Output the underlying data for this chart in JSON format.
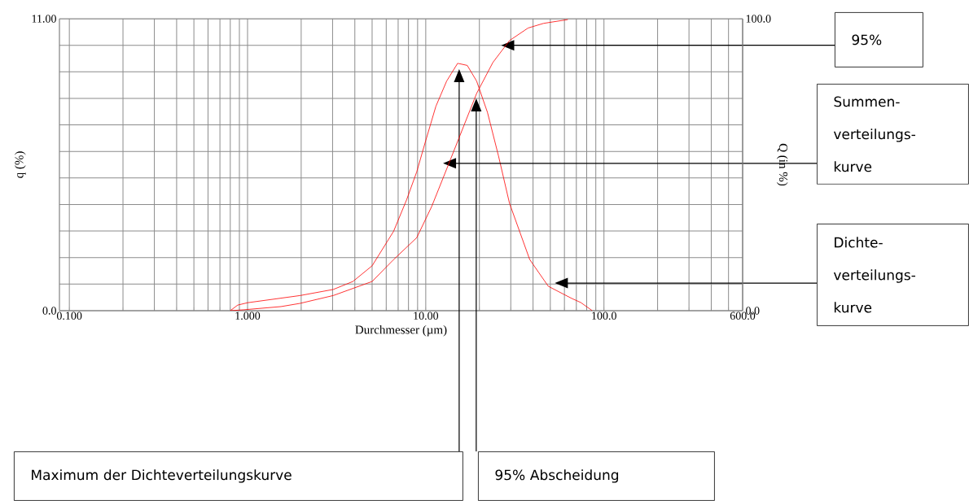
{
  "chart_data": {
    "type": "line",
    "xlabel": "Durchmesser (µm)",
    "ylabel": "q (%)",
    "y2label": "Q (in %)",
    "log": "x",
    "grid": true,
    "marker": "none",
    "line_style": "solid",
    "xlim": [
      0.088,
      600
    ],
    "ylim": [
      0,
      11
    ],
    "y2lim": [
      0,
      100
    ],
    "xticks": [
      {
        "value": 0.1,
        "label": "0.100"
      },
      {
        "value": 0.2,
        "label": null
      },
      {
        "value": 0.3,
        "label": null
      },
      {
        "value": 0.4,
        "label": null
      },
      {
        "value": 0.5,
        "label": null
      },
      {
        "value": 0.6,
        "label": null
      },
      {
        "value": 0.7,
        "label": null
      },
      {
        "value": 0.8,
        "label": null
      },
      {
        "value": 0.9,
        "label": null
      },
      {
        "value": 1,
        "label": "1.000"
      },
      {
        "value": 2,
        "label": null
      },
      {
        "value": 3,
        "label": null
      },
      {
        "value": 4,
        "label": null
      },
      {
        "value": 5,
        "label": null
      },
      {
        "value": 6,
        "label": null
      },
      {
        "value": 7,
        "label": null
      },
      {
        "value": 8,
        "label": null
      },
      {
        "value": 9,
        "label": null
      },
      {
        "value": 10,
        "label": "10.00"
      },
      {
        "value": 20,
        "label": null
      },
      {
        "value": 30,
        "label": null
      },
      {
        "value": 40,
        "label": null
      },
      {
        "value": 50,
        "label": null
      },
      {
        "value": 60,
        "label": null
      },
      {
        "value": 70,
        "label": null
      },
      {
        "value": 80,
        "label": null
      },
      {
        "value": 90,
        "label": null
      },
      {
        "value": 100,
        "label": "100.0"
      },
      {
        "value": 200,
        "label": null
      },
      {
        "value": 300,
        "label": null
      },
      {
        "value": 400,
        "label": null
      },
      {
        "value": 500,
        "label": null
      },
      {
        "value": 600,
        "label": "600.0"
      }
    ],
    "yticks": [
      {
        "value": 0,
        "label": "0.0"
      },
      {
        "value": 1,
        "label": null
      },
      {
        "value": 2,
        "label": null
      },
      {
        "value": 3,
        "label": null
      },
      {
        "value": 4,
        "label": null
      },
      {
        "value": 5,
        "label": null
      },
      {
        "value": 6,
        "label": null
      },
      {
        "value": 7,
        "label": null
      },
      {
        "value": 8,
        "label": null
      },
      {
        "value": 9,
        "label": null
      },
      {
        "value": 10,
        "label": null
      },
      {
        "value": 11,
        "label": "11.00"
      }
    ],
    "y2ticks": [
      {
        "value": 0,
        "label": "0.0"
      },
      {
        "value": 100,
        "label": "100.0"
      }
    ],
    "series": [
      {
        "color": "#ff0000",
        "x": [
          0.8,
          0.88,
          1.0,
          1.97,
          3.03,
          3.9,
          5.0,
          6.6,
          7.8,
          8.9,
          10,
          11.4,
          13.1,
          15.1,
          17.1,
          19.3,
          22.2,
          25.6,
          29.5,
          38.3,
          48.7,
          66,
          74,
          86
        ],
        "values": [
          0,
          0.21,
          0.3,
          0.57,
          0.8,
          1.1,
          1.69,
          2.99,
          4.17,
          5.23,
          6.41,
          7.7,
          8.65,
          9.32,
          9.24,
          8.65,
          7.47,
          5.83,
          4.05,
          1.93,
          0.92,
          0.46,
          0.31,
          0
        ]
      },
      {
        "axis": "y2",
        "color": "#ff0000",
        "x": [
          0.8,
          0.95,
          1.54,
          1.97,
          3.03,
          5.0,
          6.6,
          8.9,
          10.8,
          13.1,
          15.4,
          19.3,
          23.8,
          29.5,
          37.5,
          45.8,
          62.7
        ],
        "values": [
          0,
          0.3,
          1.4,
          2.5,
          5.2,
          10,
          17.5,
          25,
          35.7,
          48.5,
          59.3,
          74.4,
          85,
          92.5,
          96.8,
          98.4,
          99.7
        ]
      }
    ],
    "annotations": [
      "95%",
      "Summen-verteilungs-kurve",
      "Dichte-verteilungs-kurve",
      "Maximum der Dichteverteilungskurve",
      "95% Abscheidung"
    ]
  }
}
